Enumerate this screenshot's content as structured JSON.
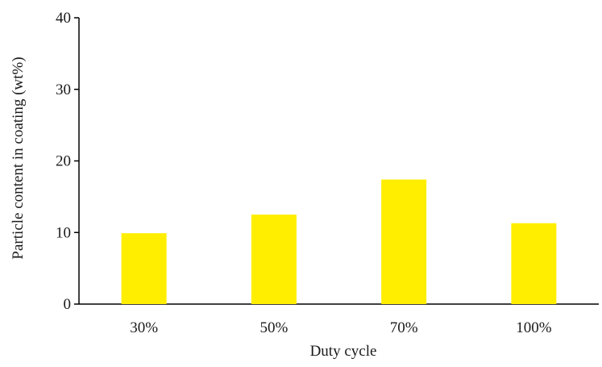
{
  "chart_data": {
    "type": "bar",
    "title": "",
    "xlabel": "Duty cycle",
    "ylabel": "Particle content in coating  (wt%)",
    "categories": [
      "30%",
      "50%",
      "70%",
      "100%"
    ],
    "values": [
      9.9,
      12.5,
      17.4,
      11.3
    ],
    "ylim": [
      0,
      40
    ],
    "yticks": [
      0,
      10,
      20,
      30,
      40
    ],
    "grid": false,
    "legend": "none",
    "bar_color": "#FFEE00",
    "axis_color": "#000000"
  }
}
